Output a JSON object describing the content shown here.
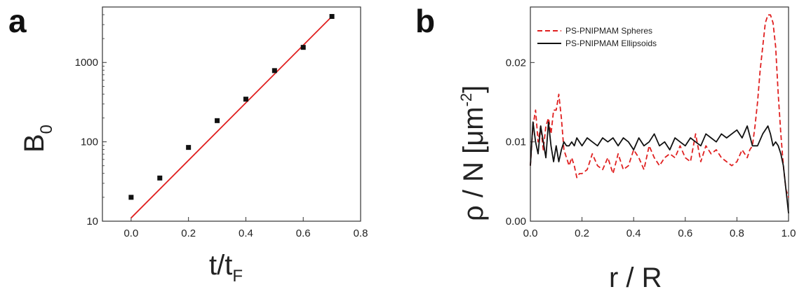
{
  "chart_data": [
    {
      "type": "scatter",
      "panel_label": "a",
      "xlabel_main": "t/t",
      "xlabel_sub": "F",
      "ylabel_main": "B",
      "ylabel_sub": "0",
      "yscale": "log",
      "xlim": [
        -0.1,
        0.8
      ],
      "ylim": [
        10,
        5000
      ],
      "xticks": [
        0.0,
        0.2,
        0.4,
        0.6,
        0.8
      ],
      "xtick_labels": [
        "0.0",
        "0.2",
        "0.4",
        "0.6",
        "0.8"
      ],
      "yticks": [
        10,
        100,
        1000
      ],
      "ytick_labels": [
        "10",
        "100",
        "1000"
      ],
      "series": [
        {
          "name": "data",
          "kind": "markers",
          "color": "#111111",
          "x": [
            0.0,
            0.1,
            0.2,
            0.3,
            0.4,
            0.5,
            0.6,
            0.7
          ],
          "y": [
            20,
            35,
            85,
            185,
            345,
            790,
            1550,
            3800
          ]
        },
        {
          "name": "fit",
          "kind": "line",
          "color": "#e02020",
          "x": [
            0.0,
            0.7
          ],
          "y": [
            11,
            3800
          ]
        }
      ]
    },
    {
      "type": "line",
      "panel_label": "b",
      "xlabel": "r / R",
      "ylabel_main": "ρ / N [μm",
      "ylabel_sup": "-2",
      "ylabel_end": "]",
      "xlim": [
        0.0,
        1.0
      ],
      "ylim": [
        0.0,
        0.027
      ],
      "xticks": [
        0.0,
        0.2,
        0.4,
        0.6,
        0.8,
        1.0
      ],
      "xtick_labels": [
        "0.0",
        "0.2",
        "0.4",
        "0.6",
        "0.8",
        "1.0"
      ],
      "yticks": [
        0.0,
        0.01,
        0.02
      ],
      "ytick_labels": [
        "0.00",
        "0.01",
        "0.02"
      ],
      "legend": "top-left",
      "series": [
        {
          "name": "PS-PNIPMAM Spheres",
          "style": "dashed",
          "color": "#e02020",
          "x": [
            0.0,
            0.01,
            0.02,
            0.03,
            0.04,
            0.05,
            0.06,
            0.07,
            0.08,
            0.09,
            0.1,
            0.11,
            0.12,
            0.13,
            0.14,
            0.15,
            0.16,
            0.17,
            0.18,
            0.19,
            0.2,
            0.22,
            0.24,
            0.26,
            0.28,
            0.3,
            0.32,
            0.34,
            0.36,
            0.38,
            0.4,
            0.42,
            0.44,
            0.46,
            0.48,
            0.5,
            0.52,
            0.54,
            0.56,
            0.58,
            0.6,
            0.62,
            0.64,
            0.66,
            0.68,
            0.7,
            0.72,
            0.74,
            0.76,
            0.78,
            0.8,
            0.82,
            0.84,
            0.85,
            0.86,
            0.87,
            0.88,
            0.89,
            0.9,
            0.91,
            0.92,
            0.93,
            0.94,
            0.95,
            0.96,
            0.97,
            0.98,
            0.99,
            1.0
          ],
          "y": [
            0.007,
            0.012,
            0.014,
            0.01,
            0.012,
            0.009,
            0.012,
            0.013,
            0.011,
            0.014,
            0.014,
            0.016,
            0.013,
            0.009,
            0.008,
            0.007,
            0.008,
            0.007,
            0.0055,
            0.006,
            0.006,
            0.0065,
            0.0085,
            0.007,
            0.0065,
            0.008,
            0.006,
            0.0085,
            0.0065,
            0.007,
            0.009,
            0.008,
            0.0065,
            0.0095,
            0.008,
            0.007,
            0.008,
            0.0085,
            0.008,
            0.0095,
            0.008,
            0.0075,
            0.011,
            0.0075,
            0.0095,
            0.0085,
            0.009,
            0.008,
            0.0075,
            0.007,
            0.0075,
            0.009,
            0.008,
            0.009,
            0.0095,
            0.012,
            0.015,
            0.019,
            0.022,
            0.025,
            0.026,
            0.026,
            0.025,
            0.022,
            0.016,
            0.011,
            0.007,
            0.004,
            0.003
          ]
        },
        {
          "name": "PS-PNIPMAM Ellipsoids",
          "style": "solid",
          "color": "#111111",
          "x": [
            0.0,
            0.01,
            0.02,
            0.03,
            0.04,
            0.05,
            0.06,
            0.07,
            0.08,
            0.09,
            0.1,
            0.11,
            0.12,
            0.13,
            0.14,
            0.15,
            0.16,
            0.17,
            0.18,
            0.19,
            0.2,
            0.22,
            0.24,
            0.26,
            0.28,
            0.3,
            0.32,
            0.34,
            0.36,
            0.38,
            0.4,
            0.42,
            0.44,
            0.46,
            0.48,
            0.5,
            0.52,
            0.54,
            0.56,
            0.58,
            0.6,
            0.62,
            0.64,
            0.66,
            0.68,
            0.7,
            0.72,
            0.74,
            0.76,
            0.78,
            0.8,
            0.82,
            0.84,
            0.86,
            0.88,
            0.9,
            0.92,
            0.93,
            0.94,
            0.95,
            0.96,
            0.97,
            0.98,
            0.99,
            1.0
          ],
          "y": [
            0.007,
            0.0125,
            0.01,
            0.0085,
            0.012,
            0.01,
            0.008,
            0.0125,
            0.0095,
            0.0075,
            0.0095,
            0.0075,
            0.009,
            0.01,
            0.0095,
            0.0095,
            0.01,
            0.0095,
            0.0105,
            0.01,
            0.0095,
            0.0105,
            0.01,
            0.0095,
            0.0105,
            0.01,
            0.0105,
            0.0095,
            0.0105,
            0.01,
            0.009,
            0.0105,
            0.0095,
            0.01,
            0.011,
            0.0095,
            0.01,
            0.009,
            0.0105,
            0.01,
            0.0095,
            0.0105,
            0.01,
            0.0095,
            0.011,
            0.0105,
            0.01,
            0.011,
            0.0105,
            0.011,
            0.0115,
            0.0105,
            0.012,
            0.0095,
            0.0095,
            0.011,
            0.012,
            0.011,
            0.0095,
            0.01,
            0.0095,
            0.0085,
            0.007,
            0.004,
            0.001
          ]
        }
      ]
    }
  ]
}
